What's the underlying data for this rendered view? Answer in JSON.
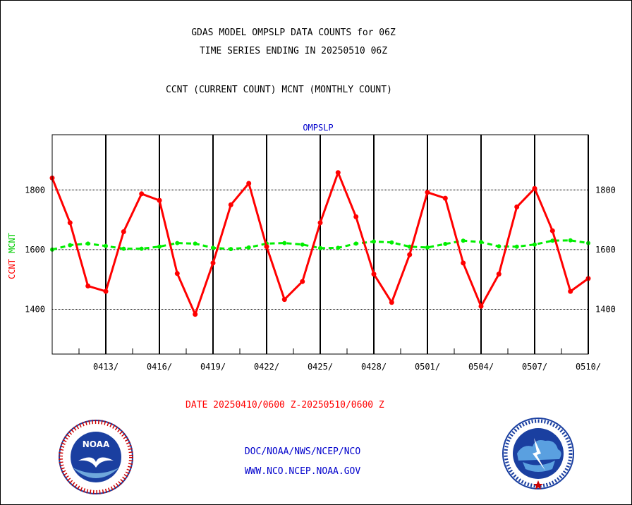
{
  "title_line1": "GDAS MODEL OMPSLP DATA COUNTS for 06Z",
  "title_line2": "TIME SERIES ENDING IN 20250510 06Z",
  "subtitle": "CCNT (CURRENT COUNT) MCNT (MONTHLY COUNT)",
  "date_range": "DATE 20250410/0600 Z-20250510/0600 Z",
  "footer_line1": "DOC/NOAA/NWS/NCEP/NCO",
  "footer_line2": "WWW.NCO.NCEP.NOAA.GOV",
  "logos": [
    "noaa-logo",
    "nws-logo"
  ],
  "chart_data": {
    "type": "line",
    "title": "OMPSLP",
    "ylabel_ccnt": "CCNT",
    "ylabel_mcnt": "MCNT",
    "x": [
      "0410",
      "0411",
      "0412",
      "0413",
      "0414",
      "0415",
      "0416",
      "0417",
      "0418",
      "0419",
      "0420",
      "0421",
      "0422",
      "0423",
      "0424",
      "0425",
      "0426",
      "0427",
      "0428",
      "0429",
      "0430",
      "0501",
      "0502",
      "0503",
      "0504",
      "0505",
      "0506",
      "0507",
      "0508",
      "0509",
      "0510"
    ],
    "xticks": [
      "0413/",
      "0416/",
      "0419/",
      "0422/",
      "0425/",
      "0428/",
      "0501/",
      "0504/",
      "0507/",
      "0510/"
    ],
    "yticks": [
      1400,
      1600,
      1800
    ],
    "ylim": [
      1250,
      1985
    ],
    "grid": true,
    "series": [
      {
        "name": "CCNT",
        "color": "#ff0000",
        "style": "solid",
        "values": [
          1840,
          1690,
          1478,
          1460,
          1660,
          1787,
          1765,
          1520,
          1383,
          1555,
          1750,
          1822,
          1610,
          1433,
          1493,
          1690,
          1858,
          1710,
          1518,
          1423,
          1583,
          1792,
          1772,
          1555,
          1410,
          1518,
          1743,
          1805,
          1663,
          1460,
          1503
        ]
      },
      {
        "name": "MCNT",
        "color": "#00ee00",
        "style": "dashed",
        "values": [
          1600,
          1615,
          1620,
          1612,
          1603,
          1603,
          1610,
          1622,
          1620,
          1606,
          1602,
          1607,
          1620,
          1622,
          1617,
          1605,
          1606,
          1620,
          1627,
          1624,
          1610,
          1607,
          1619,
          1630,
          1625,
          1611,
          1610,
          1617,
          1630,
          1631,
          1622
        ]
      }
    ]
  }
}
